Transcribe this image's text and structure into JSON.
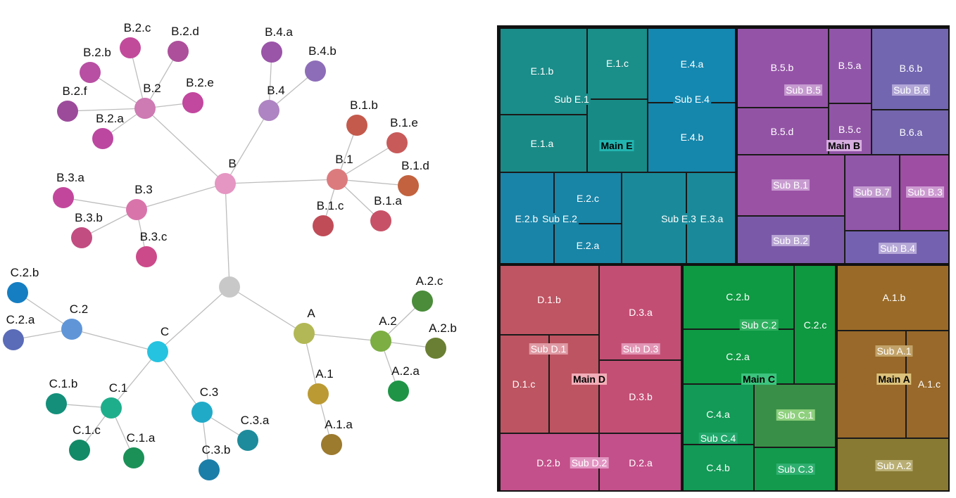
{
  "tree": {
    "edges": [
      [
        "root",
        "A"
      ],
      [
        "root",
        "B"
      ],
      [
        "root",
        "C"
      ],
      [
        "A",
        "A.1"
      ],
      [
        "A",
        "A.2"
      ],
      [
        "A.1",
        "A.1.a"
      ],
      [
        "A.2",
        "A.2.a"
      ],
      [
        "A.2",
        "A.2.b"
      ],
      [
        "A.2",
        "A.2.c"
      ],
      [
        "B",
        "B.1"
      ],
      [
        "B",
        "B.2"
      ],
      [
        "B",
        "B.3"
      ],
      [
        "B",
        "B.4"
      ],
      [
        "B.1",
        "B.1.a"
      ],
      [
        "B.1",
        "B.1.b"
      ],
      [
        "B.1",
        "B.1.c"
      ],
      [
        "B.1",
        "B.1.d"
      ],
      [
        "B.1",
        "B.1.e"
      ],
      [
        "B.2",
        "B.2.a"
      ],
      [
        "B.2",
        "B.2.b"
      ],
      [
        "B.2",
        "B.2.c"
      ],
      [
        "B.2",
        "B.2.d"
      ],
      [
        "B.2",
        "B.2.e"
      ],
      [
        "B.2",
        "B.2.f"
      ],
      [
        "B.3",
        "B.3.a"
      ],
      [
        "B.3",
        "B.3.b"
      ],
      [
        "B.3",
        "B.3.c"
      ],
      [
        "B.4",
        "B.4.a"
      ],
      [
        "B.4",
        "B.4.b"
      ],
      [
        "C",
        "C.1"
      ],
      [
        "C",
        "C.2"
      ],
      [
        "C",
        "C.3"
      ],
      [
        "C.1",
        "C.1.a"
      ],
      [
        "C.1",
        "C.1.b"
      ],
      [
        "C.1",
        "C.1.c"
      ],
      [
        "C.2",
        "C.2.a"
      ],
      [
        "C.2",
        "C.2.b"
      ],
      [
        "C.3",
        "C.3.a"
      ],
      [
        "C.3",
        "C.3.b"
      ]
    ],
    "nodes": [
      {
        "id": "root",
        "label": "",
        "color": "#c8c8c8"
      },
      {
        "id": "A",
        "label": "A",
        "color": "#b2b855"
      },
      {
        "id": "A.1",
        "label": "A.1",
        "color": "#bb9a33"
      },
      {
        "id": "A.1.a",
        "label": "A.1.a",
        "color": "#9c7a2e"
      },
      {
        "id": "A.2",
        "label": "A.2",
        "color": "#7cae43"
      },
      {
        "id": "A.2.a",
        "label": "A.2.a",
        "color": "#1f9447"
      },
      {
        "id": "A.2.b",
        "label": "A.2.b",
        "color": "#6a7f33"
      },
      {
        "id": "A.2.c",
        "label": "A.2.c",
        "color": "#4a8c3a"
      },
      {
        "id": "B",
        "label": "B",
        "color": "#e596c2"
      },
      {
        "id": "B.1",
        "label": "B.1",
        "color": "#dc7b7e"
      },
      {
        "id": "B.1.a",
        "label": "B.1.a",
        "color": "#c75268"
      },
      {
        "id": "B.1.b",
        "label": "B.1.b",
        "color": "#c35a4c"
      },
      {
        "id": "B.1.c",
        "label": "B.1.c",
        "color": "#c04c58"
      },
      {
        "id": "B.1.d",
        "label": "B.1.d",
        "color": "#c2623e"
      },
      {
        "id": "B.1.e",
        "label": "B.1.e",
        "color": "#c85a5a"
      },
      {
        "id": "B.2",
        "label": "B.2",
        "color": "#ce7ab3"
      },
      {
        "id": "B.2.a",
        "label": "B.2.a",
        "color": "#bc47a0"
      },
      {
        "id": "B.2.b",
        "label": "B.2.b",
        "color": "#b84fa3"
      },
      {
        "id": "B.2.c",
        "label": "B.2.c",
        "color": "#c24a9b"
      },
      {
        "id": "B.2.d",
        "label": "B.2.d",
        "color": "#ad4f9b"
      },
      {
        "id": "B.2.e",
        "label": "B.2.e",
        "color": "#c2479e"
      },
      {
        "id": "B.2.f",
        "label": "B.2.f",
        "color": "#9c4b9b"
      },
      {
        "id": "B.3",
        "label": "B.3",
        "color": "#d974ab"
      },
      {
        "id": "B.3.a",
        "label": "B.3.a",
        "color": "#c2479c"
      },
      {
        "id": "B.3.b",
        "label": "B.3.b",
        "color": "#c24d80"
      },
      {
        "id": "B.3.c",
        "label": "B.3.c",
        "color": "#cc4a8a"
      },
      {
        "id": "B.4",
        "label": "B.4",
        "color": "#ae84c2"
      },
      {
        "id": "B.4.a",
        "label": "B.4.a",
        "color": "#9a54a8"
      },
      {
        "id": "B.4.b",
        "label": "B.4.b",
        "color": "#8d6db8"
      },
      {
        "id": "C",
        "label": "C",
        "color": "#25c3e0"
      },
      {
        "id": "C.1",
        "label": "C.1",
        "color": "#1fae8b"
      },
      {
        "id": "C.1.a",
        "label": "C.1.a",
        "color": "#1b9158"
      },
      {
        "id": "C.1.b",
        "label": "C.1.b",
        "color": "#138f7a"
      },
      {
        "id": "C.1.c",
        "label": "C.1.c",
        "color": "#128a68"
      },
      {
        "id": "C.2",
        "label": "C.2",
        "color": "#6096d8"
      },
      {
        "id": "C.2.a",
        "label": "C.2.a",
        "color": "#5a6bb8"
      },
      {
        "id": "C.2.b",
        "label": "C.2.b",
        "color": "#157ec2"
      },
      {
        "id": "C.3",
        "label": "C.3",
        "color": "#21aac8"
      },
      {
        "id": "C.3.a",
        "label": "C.3.a",
        "color": "#1d8b9b"
      },
      {
        "id": "C.3.b",
        "label": "C.3.b",
        "color": "#1b7ea8"
      }
    ]
  },
  "treemap": {
    "cells": [
      {
        "id": "E.1.b",
        "label": "E.1.b",
        "color": "#1a8c89"
      },
      {
        "id": "E.1.c",
        "label": "E.1.c",
        "color": "#1a8e88"
      },
      {
        "id": "E.1.a",
        "label": "E.1.a",
        "color": "#1a8a86"
      },
      {
        "id": "E.1.main",
        "label": "",
        "color": "#188a86"
      },
      {
        "id": "E.4.a",
        "label": "E.4.a",
        "color": "#1488b0"
      },
      {
        "id": "E.4.b",
        "label": "E.4.b",
        "color": "#1586ac"
      },
      {
        "id": "E.2.b",
        "label": "E.2.b",
        "color": "#1a84a8"
      },
      {
        "id": "E.2.c",
        "label": "E.2.c",
        "color": "#1884a6"
      },
      {
        "id": "E.2.a",
        "label": "E.2.a",
        "color": "#1884a6"
      },
      {
        "id": "E.3",
        "label": "",
        "color": "#1a8a9a"
      },
      {
        "id": "E.3.a",
        "label": "E.3.a",
        "color": "#1a8a9a"
      },
      {
        "id": "B.5.b",
        "label": "B.5.b",
        "color": "#9553a8"
      },
      {
        "id": "B.5.a",
        "label": "B.5.a",
        "color": "#9055a8"
      },
      {
        "id": "B.5.d",
        "label": "B.5.d",
        "color": "#9353a5"
      },
      {
        "id": "B.5.c",
        "label": "B.5.c",
        "color": "#9155a6"
      },
      {
        "id": "B.6.b",
        "label": "B.6.b",
        "color": "#7266b0"
      },
      {
        "id": "B.6.a",
        "label": "B.6.a",
        "color": "#7465ae"
      },
      {
        "id": "B.1",
        "label": "",
        "color": "#9a52a5"
      },
      {
        "id": "B.2",
        "label": "",
        "color": "#7a5aa8"
      },
      {
        "id": "B.7",
        "label": "",
        "color": "#9056a8"
      },
      {
        "id": "B.3",
        "label": "",
        "color": "#9e4ea3"
      },
      {
        "id": "B.4",
        "label": "",
        "color": "#7462b0"
      },
      {
        "id": "D.1.b",
        "label": "D.1.b",
        "color": "#bf5462"
      },
      {
        "id": "D.1.c",
        "label": "D.1.c",
        "color": "#bd5461"
      },
      {
        "id": "D.1.x",
        "label": "",
        "color": "#bd5461"
      },
      {
        "id": "D.3.a",
        "label": "D.3.a",
        "color": "#c34e74"
      },
      {
        "id": "D.3.b",
        "label": "D.3.b",
        "color": "#c34f75"
      },
      {
        "id": "D.2.b",
        "label": "D.2.b",
        "color": "#c3508a"
      },
      {
        "id": "D.2.a",
        "label": "D.2.a",
        "color": "#c3508a"
      },
      {
        "id": "C.2.b",
        "label": "C.2.b",
        "color": "#0e9a42"
      },
      {
        "id": "C.2.a",
        "label": "C.2.a",
        "color": "#0e9a44"
      },
      {
        "id": "C.2.c",
        "label": "C.2.c",
        "color": "#0e9840"
      },
      {
        "id": "C.4.a",
        "label": "C.4.a",
        "color": "#129a56"
      },
      {
        "id": "C.4.b",
        "label": "C.4.b",
        "color": "#129a56"
      },
      {
        "id": "C.1",
        "label": "",
        "color": "#3a8f48"
      },
      {
        "id": "C.3",
        "label": "",
        "color": "#139a4c"
      },
      {
        "id": "A.1.b",
        "label": "A.1.b",
        "color": "#9a6b28"
      },
      {
        "id": "A.1.x",
        "label": "",
        "color": "#98692a"
      },
      {
        "id": "A.1.c",
        "label": "A.1.c",
        "color": "#98692a"
      },
      {
        "id": "A.2",
        "label": "",
        "color": "#887a32"
      }
    ],
    "sub_labels": [
      {
        "id": "subE1",
        "text": "Sub E.1",
        "bg": "#1a8c89"
      },
      {
        "id": "subE4",
        "text": "Sub E.4",
        "bg": "#1488b0"
      },
      {
        "id": "subE2",
        "text": "Sub E.2",
        "bg": "#1884a6"
      },
      {
        "id": "subE3",
        "text": "Sub E.3",
        "bg": "#1a8a9a"
      },
      {
        "id": "subB5",
        "text": "Sub B.5",
        "bg": "#c69bd0"
      },
      {
        "id": "subB6",
        "text": "Sub B.6",
        "bg": "#b1a6d6"
      },
      {
        "id": "subB1",
        "text": "Sub B.1",
        "bg": "#c89bd0"
      },
      {
        "id": "subB7",
        "text": "Sub B.7",
        "bg": "#c49dd0"
      },
      {
        "id": "subB3",
        "text": "Sub B.3",
        "bg": "#cd9bd1"
      },
      {
        "id": "subB2",
        "text": "Sub B.2",
        "bg": "#b9a5d4"
      },
      {
        "id": "subB4",
        "text": "Sub B.4",
        "bg": "#b6a8d7"
      },
      {
        "id": "subD1",
        "text": "Sub D.1",
        "bg": "#df9aa4"
      },
      {
        "id": "subD3",
        "text": "Sub D.3",
        "bg": "#e295b4"
      },
      {
        "id": "subD2",
        "text": "Sub D.2",
        "bg": "#e296c2"
      },
      {
        "id": "subC2",
        "text": "Sub C.2",
        "bg": "#2fb060"
      },
      {
        "id": "subC4",
        "text": "Sub C.4",
        "bg": "#22a86c"
      },
      {
        "id": "subC1",
        "text": "Sub C.1",
        "bg": "#8ed07e"
      },
      {
        "id": "subC3",
        "text": "Sub C.3",
        "bg": "#2fb070"
      },
      {
        "id": "subA1",
        "text": "Sub A.1",
        "bg": "#c2a36a"
      },
      {
        "id": "subA2",
        "text": "Sub A.2",
        "bg": "#b9ae74"
      }
    ],
    "main_labels": [
      {
        "id": "mainE",
        "text": "Main E",
        "bg": "#22b5b0"
      },
      {
        "id": "mainB",
        "text": "Main B",
        "bg": "#d8aee0"
      },
      {
        "id": "mainD",
        "text": "Main D",
        "bg": "#f2aeb8"
      },
      {
        "id": "mainC",
        "text": "Main C",
        "bg": "#3cc47e"
      },
      {
        "id": "mainA",
        "text": "Main A",
        "bg": "#dcc27c"
      }
    ]
  }
}
